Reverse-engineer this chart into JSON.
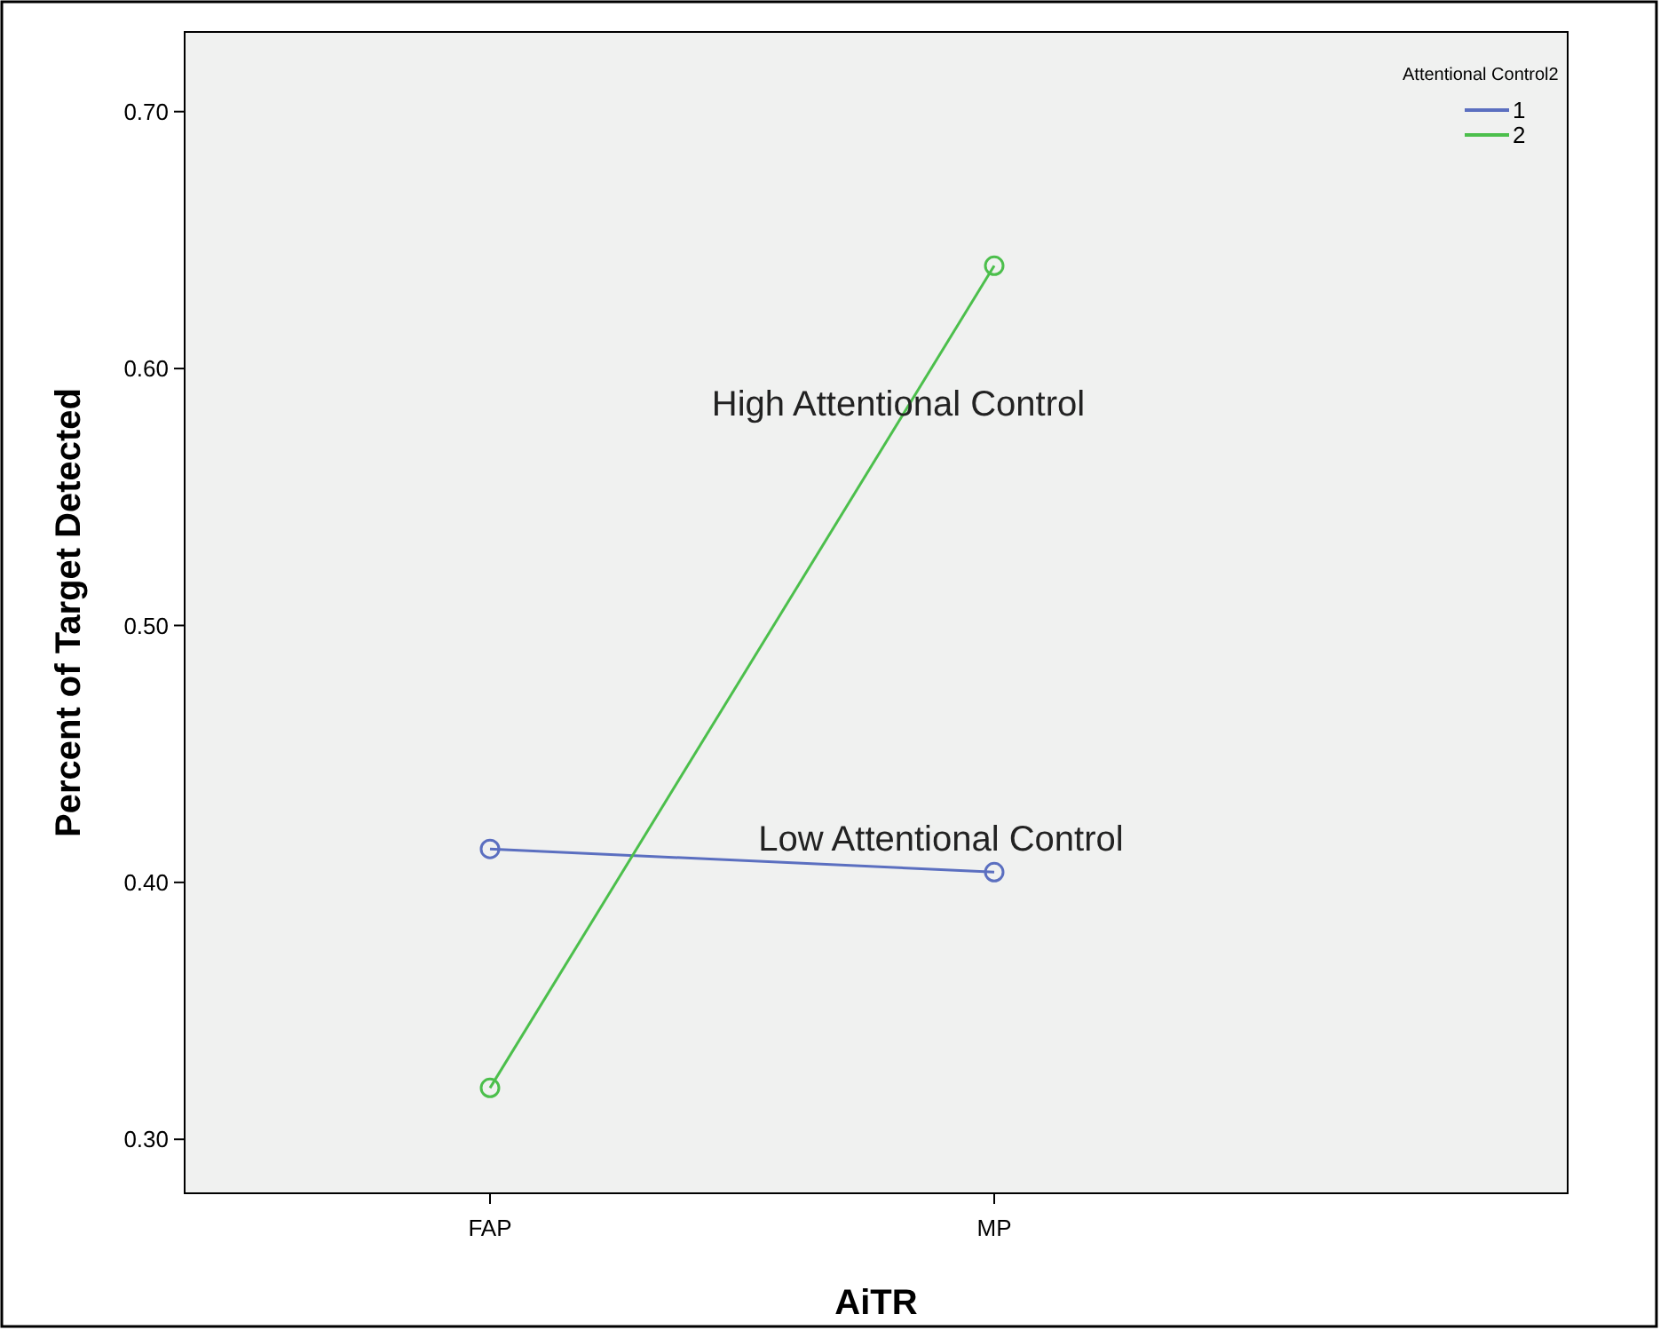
{
  "chart_data": {
    "type": "line",
    "xlabel": "AiTR",
    "ylabel": "Percent of Target Detected",
    "legend_title": "Attentional Control2",
    "legend": "top right",
    "marker": "circle",
    "grid": false,
    "categories": [
      "FAP",
      "MP"
    ],
    "series": [
      {
        "name": "1",
        "color": "#5b6fc0",
        "values": [
          0.413,
          0.404
        ]
      },
      {
        "name": "2",
        "color": "#4cbf4c",
        "values": [
          0.32,
          0.64
        ]
      }
    ],
    "ylim": [
      0.279,
      0.731
    ],
    "yticks": [
      {
        "value": 0.3,
        "label": "0.30"
      },
      {
        "value": 0.4,
        "label": "0.40"
      },
      {
        "value": 0.5,
        "label": "0.50"
      },
      {
        "value": 0.6,
        "label": "0.60"
      },
      {
        "value": 0.7,
        "label": "0.70"
      }
    ],
    "annotations": [
      "High Attentional Control",
      "Low Attentional Control"
    ]
  }
}
